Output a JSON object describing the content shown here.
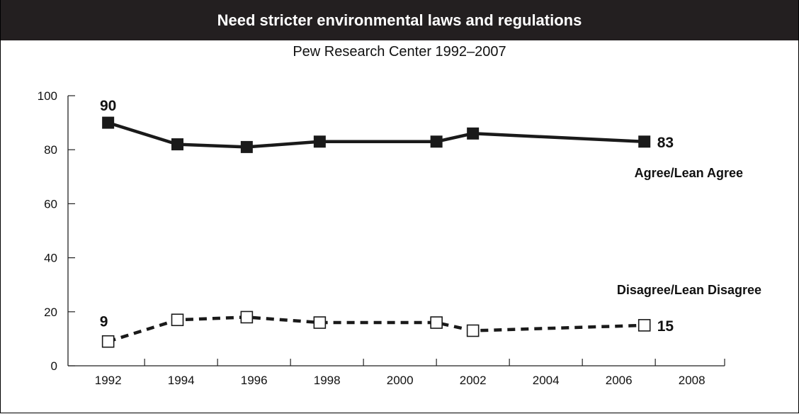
{
  "title": "Need stricter environmental laws and regulations",
  "subtitle": "Pew Research Center 1992–2007",
  "chart_data": {
    "type": "line",
    "title": "Need stricter environmental laws and regulations",
    "subtitle": "Pew Research Center 1992–2007",
    "xlabel": "",
    "ylabel": "",
    "xlim": [
      1990.9,
      2008.9
    ],
    "ylim": [
      0,
      100
    ],
    "x_ticks": [
      1992,
      1994,
      1996,
      1998,
      2000,
      2002,
      2004,
      2006,
      2008
    ],
    "y_ticks": [
      0,
      20,
      40,
      60,
      80,
      100
    ],
    "grid": false,
    "series": [
      {
        "name": "Agree/Lean Agree",
        "color": "#1a1a1a",
        "line_style": "solid",
        "marker": "filled-square",
        "x": [
          1992.0,
          1993.9,
          1995.8,
          1997.8,
          2001.0,
          2002.0,
          2006.7
        ],
        "values": [
          90,
          82,
          81,
          83,
          83,
          86,
          83
        ]
      },
      {
        "name": "Disagree/Lean Disagree",
        "color": "#1a1a1a",
        "line_style": "dashed",
        "marker": "open-square",
        "x": [
          1992.0,
          1993.9,
          1995.8,
          1997.8,
          2001.0,
          2002.0,
          2006.7
        ],
        "values": [
          9,
          17,
          18,
          16,
          16,
          13,
          15
        ]
      }
    ],
    "annotations": [
      {
        "series": 0,
        "point": 0,
        "text": "90",
        "position": "above"
      },
      {
        "series": 0,
        "point": 6,
        "text": "83",
        "position": "right"
      },
      {
        "series": 1,
        "point": 0,
        "text": "9",
        "position": "above-left"
      },
      {
        "series": 1,
        "point": 6,
        "text": "15",
        "position": "right"
      }
    ]
  }
}
